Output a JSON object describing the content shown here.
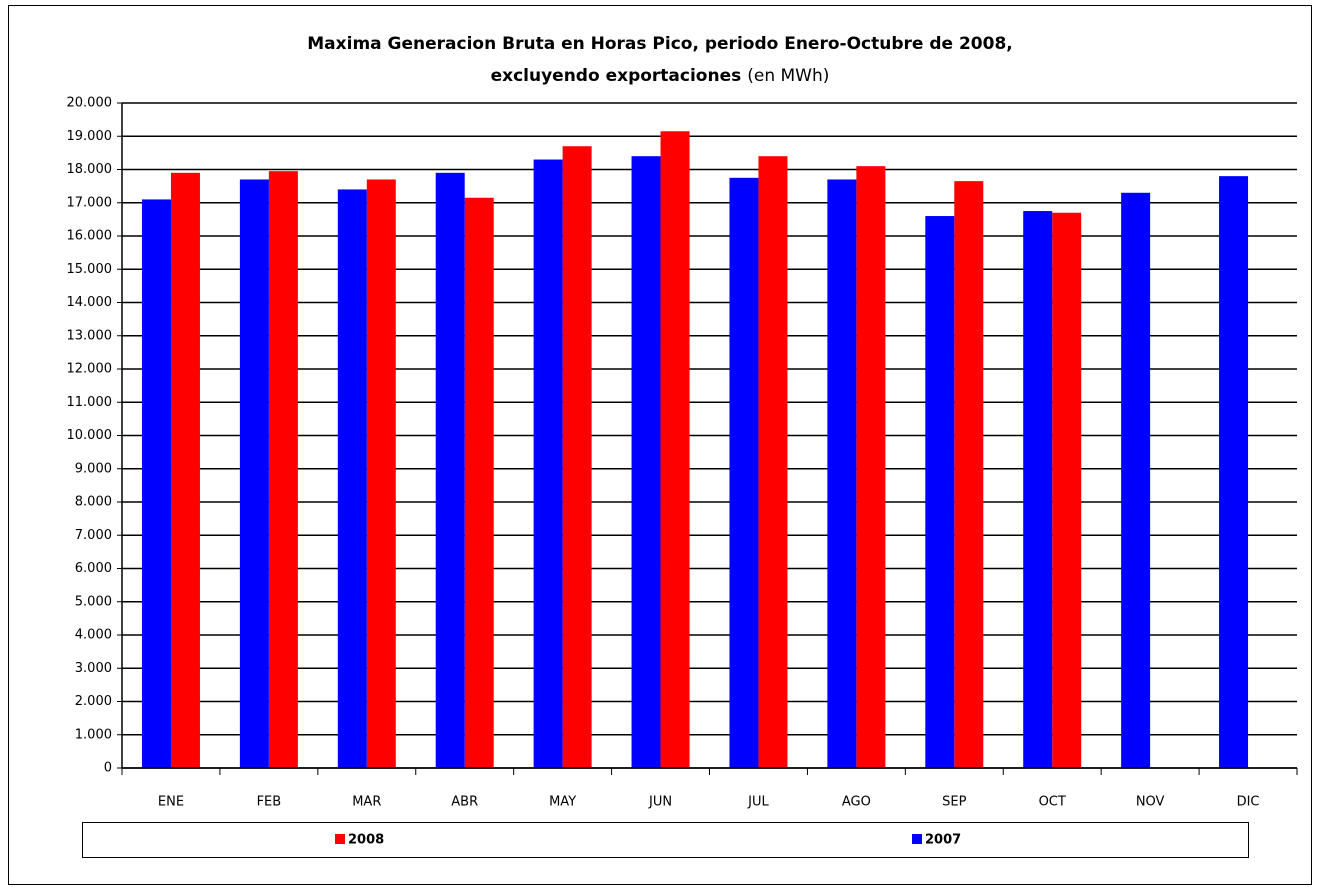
{
  "chart_data": {
    "type": "bar",
    "title": "Maxima Generacion Bruta en Horas Pico, periodo Enero-Octubre de 2008,",
    "title_line2": "excluyendo exportaciones",
    "title_unit": "(en MWh)",
    "categories": [
      "ENE",
      "FEB",
      "MAR",
      "ABR",
      "MAY",
      "JUN",
      "JUL",
      "AGO",
      "SEP",
      "OCT",
      "NOV",
      "DIC"
    ],
    "series": [
      {
        "name": "2008",
        "color": "#ff0000",
        "values": [
          17900,
          17950,
          17700,
          17150,
          18700,
          19150,
          18400,
          18100,
          17650,
          16700,
          null,
          null
        ]
      },
      {
        "name": "2007",
        "color": "#0000ff",
        "values": [
          17100,
          17700,
          17400,
          17900,
          18300,
          18400,
          17750,
          17700,
          16600,
          16750,
          17300,
          17800
        ]
      }
    ],
    "ylim": [
      0,
      20000
    ],
    "yticks": [
      0,
      {
        "value": 1000,
        "label": "1.000"
      },
      {
        "value": 2000,
        "label": "2.000"
      },
      {
        "value": 3000,
        "label": "3.000"
      },
      {
        "value": 4000,
        "label": "4.000"
      },
      {
        "value": 5000,
        "label": "5.000"
      },
      {
        "value": 6000,
        "label": "6.000"
      },
      {
        "value": 7000,
        "label": "7.000"
      },
      {
        "value": 8000,
        "label": "8.000"
      },
      {
        "value": 9000,
        "label": "9.000"
      },
      {
        "value": 10000,
        "label": "10.000"
      },
      {
        "value": 11000,
        "label": "11.000"
      },
      {
        "value": 12000,
        "label": "12.000"
      },
      {
        "value": 13000,
        "label": "13.000"
      },
      {
        "value": 14000,
        "label": "14.000"
      },
      {
        "value": 15000,
        "label": "15.000"
      },
      {
        "value": 16000,
        "label": "16.000"
      },
      {
        "value": 17000,
        "label": "17.000"
      },
      {
        "value": 18000,
        "label": "18.000"
      },
      {
        "value": 19000,
        "label": "19.000"
      },
      {
        "value": 20000,
        "label": "20.000"
      }
    ],
    "grid": true,
    "legend": "bottom"
  }
}
